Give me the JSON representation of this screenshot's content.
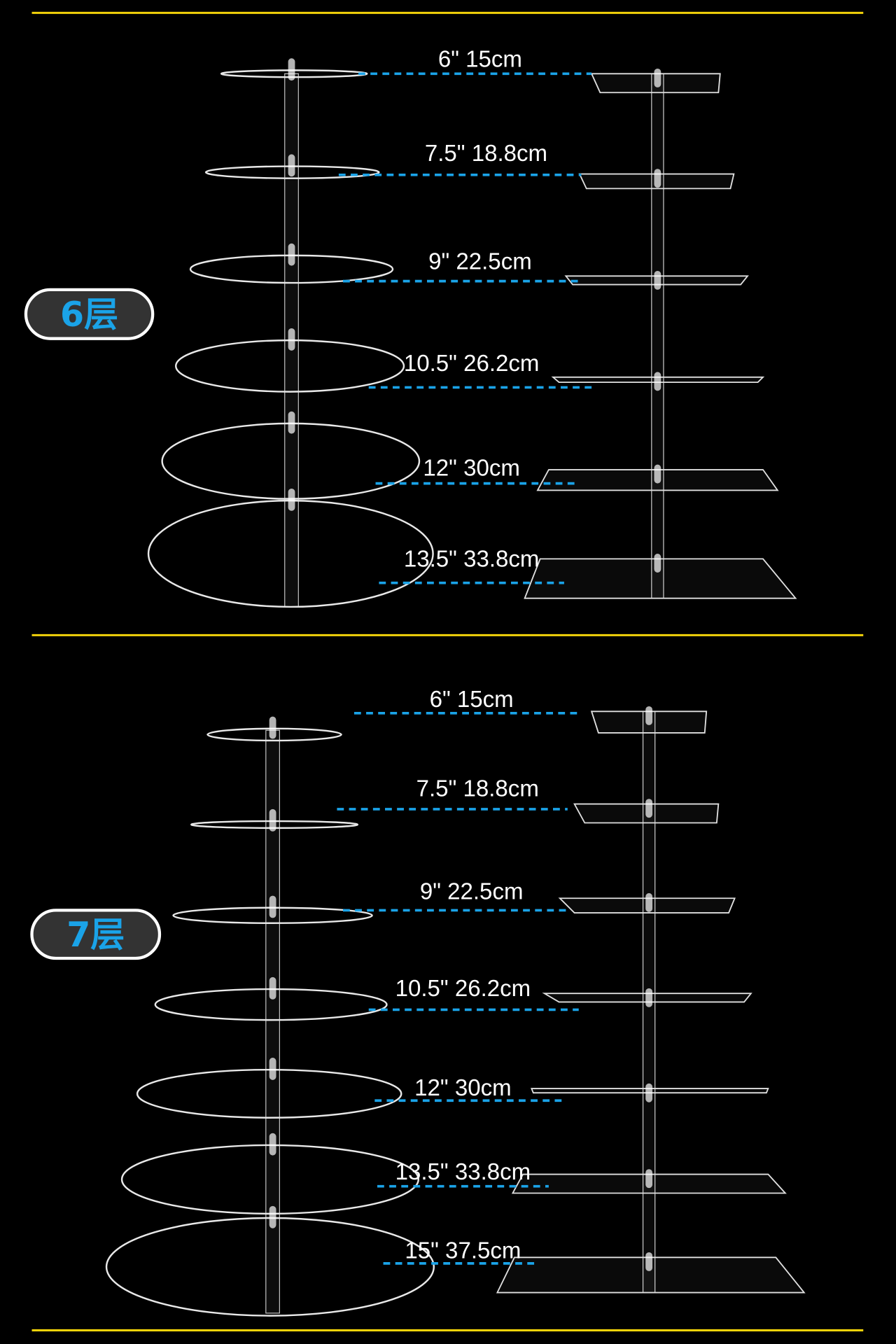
{
  "colors": {
    "background": "#000000",
    "rule": "#f2d20a",
    "dash": "#1aa3e8",
    "badge_fill": "#333333",
    "badge_text": "#1aa3e8"
  },
  "sections": [
    {
      "badge": "6层",
      "tiers": [
        "6\"  15cm",
        "7.5\"  18.8cm",
        "9\"  22.5cm",
        "10.5\"  26.2cm",
        "12\" 30cm",
        "13.5\"  33.8cm"
      ]
    },
    {
      "badge": "7层",
      "tiers": [
        "6\"  15cm",
        "7.5\"  18.8cm",
        "9\"  22.5cm",
        "10.5\"  26.2cm",
        "12\" 30cm",
        "13.5\"  33.8cm",
        "15\"  37.5cm"
      ]
    }
  ]
}
